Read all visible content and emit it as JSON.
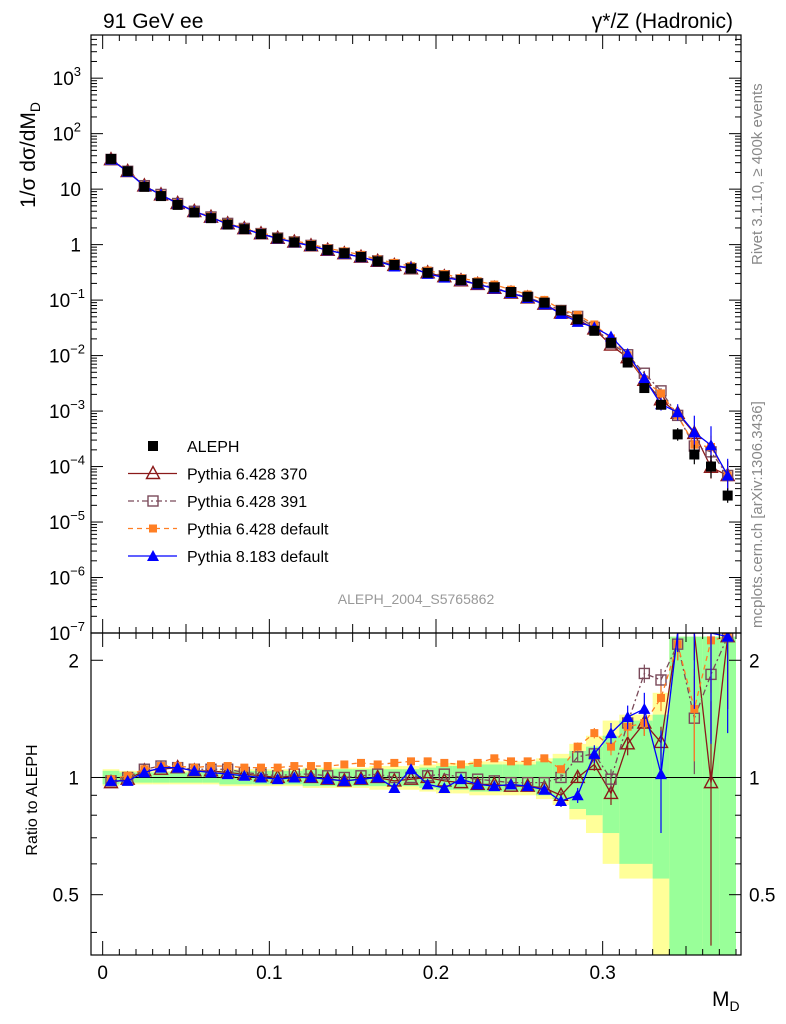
{
  "header": {
    "left_label": "91 GeV ee",
    "right_label": "γ*/Z (Hadronic)"
  },
  "side": {
    "rivet": "Rivet 3.1.10, ≥ 400k events",
    "mcplots": "mcplots.cern.ch [arXiv:1306.3436]"
  },
  "analysis_tag": "ALEPH_2004_S5765862",
  "colors": {
    "data": "#000000",
    "p370": "#8b1a1a",
    "p391": "#7a4a5a",
    "p6def": "#ff7f24",
    "p8": "#0000ff",
    "band_yellow": "#ffff99",
    "band_green": "#99ff99"
  },
  "chart_data": [
    {
      "type": "scatter",
      "panel": "main",
      "ylabel_main": "1/σ  dσ/dM",
      "ylabel_sub": "D",
      "yscale": "log",
      "ylim": [
        1e-07,
        6000
      ],
      "xlim": [
        -0.007,
        0.383
      ],
      "y_ticks": [
        {
          "v": 1000.0,
          "label": "10",
          "sup": "3"
        },
        {
          "v": 100.0,
          "label": "10",
          "sup": "2"
        },
        {
          "v": 10,
          "label": "10",
          "sup": ""
        },
        {
          "v": 1,
          "label": "1",
          "sup": ""
        },
        {
          "v": 0.1,
          "label": "10",
          "sup": "−1"
        },
        {
          "v": 0.01,
          "label": "10",
          "sup": "−2"
        },
        {
          "v": 0.001,
          "label": "10",
          "sup": "−3"
        },
        {
          "v": 0.0001,
          "label": "10",
          "sup": "−4"
        },
        {
          "v": 1e-05,
          "label": "10",
          "sup": "−5"
        },
        {
          "v": 1e-06,
          "label": "10",
          "sup": "−6"
        },
        {
          "v": 1e-07,
          "label": "10",
          "sup": "−7"
        }
      ],
      "x": [
        0.005,
        0.015,
        0.025,
        0.035,
        0.045,
        0.055,
        0.065,
        0.075,
        0.085,
        0.095,
        0.105,
        0.115,
        0.125,
        0.135,
        0.145,
        0.155,
        0.165,
        0.175,
        0.185,
        0.195,
        0.205,
        0.215,
        0.225,
        0.235,
        0.245,
        0.255,
        0.265,
        0.275,
        0.285,
        0.295,
        0.305,
        0.315,
        0.325,
        0.335,
        0.345,
        0.355,
        0.365,
        0.375
      ],
      "data": {
        "name": "ALEPH",
        "y": [
          35,
          21,
          11,
          7.5,
          5.2,
          3.8,
          3.0,
          2.3,
          1.9,
          1.55,
          1.3,
          1.1,
          0.95,
          0.8,
          0.7,
          0.6,
          0.5,
          0.43,
          0.37,
          0.31,
          0.27,
          0.23,
          0.2,
          0.17,
          0.14,
          0.115,
          0.09,
          0.065,
          0.045,
          0.028,
          0.017,
          0.0075,
          0.0026,
          0.0013,
          0.00038,
          0.000165,
          0.0001,
          3e-05
        ],
        "err_factor": [
          1.03,
          1.03,
          1.03,
          1.03,
          1.03,
          1.03,
          1.03,
          1.03,
          1.03,
          1.03,
          1.03,
          1.03,
          1.03,
          1.03,
          1.03,
          1.03,
          1.03,
          1.03,
          1.03,
          1.03,
          1.03,
          1.03,
          1.03,
          1.03,
          1.03,
          1.03,
          1.03,
          1.04,
          1.05,
          1.06,
          1.08,
          1.1,
          1.15,
          1.2,
          1.3,
          1.5,
          1.6,
          1.35
        ]
      },
      "ratio_err_lo": [
        0.96,
        0.97,
        0.97,
        0.97,
        0.97,
        0.97,
        0.97,
        0.96,
        0.96,
        0.96,
        0.96,
        0.96,
        0.95,
        0.95,
        0.95,
        0.95,
        0.95,
        0.95,
        0.95,
        0.94,
        0.93,
        0.93,
        0.92,
        0.92,
        0.92,
        0.92,
        0.9,
        0.88,
        0.83,
        0.8,
        0.72,
        0.6,
        0.6,
        0.55,
        0.35,
        0.35,
        0.35,
        0.35
      ],
      "ratio_err_hi": [
        1.04,
        1.03,
        1.03,
        1.03,
        1.03,
        1.03,
        1.03,
        1.04,
        1.04,
        1.04,
        1.04,
        1.04,
        1.05,
        1.05,
        1.05,
        1.05,
        1.05,
        1.05,
        1.05,
        1.06,
        1.07,
        1.07,
        1.08,
        1.08,
        1.08,
        1.08,
        1.1,
        1.12,
        1.17,
        1.2,
        1.28,
        1.4,
        1.4,
        1.45,
        2.3,
        2.3,
        2.3,
        2.3
      ],
      "ratio_err_lo_total": [
        0.95,
        0.96,
        0.96,
        0.96,
        0.96,
        0.96,
        0.96,
        0.95,
        0.95,
        0.95,
        0.95,
        0.95,
        0.94,
        0.94,
        0.94,
        0.94,
        0.93,
        0.93,
        0.93,
        0.92,
        0.91,
        0.91,
        0.9,
        0.9,
        0.9,
        0.9,
        0.88,
        0.85,
        0.78,
        0.72,
        0.6,
        0.55,
        0.55,
        0.35,
        0.35,
        0.35,
        0.35,
        0.35
      ],
      "ratio_err_hi_total": [
        1.05,
        1.04,
        1.04,
        1.04,
        1.04,
        1.04,
        1.04,
        1.05,
        1.05,
        1.05,
        1.05,
        1.05,
        1.06,
        1.06,
        1.06,
        1.06,
        1.07,
        1.07,
        1.07,
        1.08,
        1.09,
        1.09,
        1.1,
        1.1,
        1.1,
        1.1,
        1.12,
        1.15,
        1.22,
        1.28,
        1.4,
        1.45,
        1.45,
        1.65,
        2.3,
        2.3,
        2.3,
        2.3
      ],
      "series": [
        {
          "name": "Pythia 6.428 370",
          "key": "p370",
          "ratio": [
            0.97,
            0.99,
            1.04,
            1.05,
            1.06,
            1.04,
            1.04,
            1.03,
            1.02,
            1.01,
            1.0,
            1.01,
            1.0,
            0.99,
            0.98,
            0.99,
            1.0,
            0.98,
            0.99,
            1.0,
            0.98,
            0.97,
            0.96,
            0.96,
            0.95,
            0.95,
            0.94,
            0.9,
            1.0,
            1.08,
            0.91,
            1.22,
            1.38,
            1.23,
            2.4,
            2.4,
            0.97,
            2.3
          ],
          "err": [
            0.01,
            0.01,
            0.01,
            0.01,
            0.01,
            0.01,
            0.01,
            0.01,
            0.01,
            0.01,
            0.01,
            0.01,
            0.01,
            0.01,
            0.01,
            0.01,
            0.01,
            0.01,
            0.01,
            0.01,
            0.01,
            0.01,
            0.01,
            0.01,
            0.01,
            0.01,
            0.02,
            0.02,
            0.03,
            0.04,
            0.06,
            0.08,
            0.1,
            0.12,
            0.2,
            0.4,
            0.6,
            0.8
          ]
        },
        {
          "name": "Pythia 6.428 391",
          "key": "p391",
          "ratio": [
            0.98,
            1.0,
            1.05,
            1.07,
            1.06,
            1.05,
            1.05,
            1.05,
            1.03,
            1.02,
            1.01,
            1.02,
            1.02,
            1.01,
            1.0,
            1.01,
            1.02,
            1.0,
            1.0,
            1.01,
            1.02,
            1.0,
            0.99,
            0.98,
            0.97,
            0.97,
            0.97,
            1.0,
            1.13,
            1.15,
            0.99,
            1.38,
            1.85,
            1.78,
            2.2,
            1.42,
            1.84,
            2.3
          ],
          "err": [
            0.01,
            0.01,
            0.01,
            0.01,
            0.01,
            0.01,
            0.01,
            0.01,
            0.01,
            0.01,
            0.01,
            0.01,
            0.01,
            0.01,
            0.01,
            0.01,
            0.01,
            0.01,
            0.01,
            0.01,
            0.01,
            0.01,
            0.01,
            0.01,
            0.01,
            0.01,
            0.02,
            0.02,
            0.03,
            0.04,
            0.06,
            0.08,
            0.1,
            0.12,
            0.2,
            0.4,
            0.6,
            0.8
          ]
        },
        {
          "name": "Pythia 6.428 default",
          "key": "p6def",
          "ratio": [
            0.99,
            1.01,
            1.05,
            1.07,
            1.07,
            1.06,
            1.07,
            1.07,
            1.06,
            1.06,
            1.06,
            1.07,
            1.07,
            1.07,
            1.08,
            1.09,
            1.08,
            1.09,
            1.1,
            1.1,
            1.09,
            1.08,
            1.09,
            1.12,
            1.1,
            1.1,
            1.12,
            1.05,
            1.2,
            1.3,
            1.2,
            1.35,
            1.38,
            1.6,
            2.2,
            1.5,
            2.25,
            2.3
          ],
          "err": [
            0.01,
            0.01,
            0.01,
            0.01,
            0.01,
            0.01,
            0.01,
            0.01,
            0.01,
            0.01,
            0.01,
            0.01,
            0.01,
            0.01,
            0.01,
            0.01,
            0.01,
            0.01,
            0.01,
            0.01,
            0.01,
            0.01,
            0.01,
            0.01,
            0.01,
            0.01,
            0.02,
            0.02,
            0.03,
            0.04,
            0.06,
            0.08,
            0.1,
            0.12,
            0.2,
            0.4,
            0.6,
            0.8
          ]
        },
        {
          "name": "Pythia 8.183 default",
          "key": "p8",
          "ratio": [
            0.98,
            0.98,
            1.03,
            1.06,
            1.06,
            1.04,
            1.03,
            1.02,
            1.01,
            1.0,
            0.99,
            1.0,
            1.0,
            0.99,
            0.98,
            0.99,
            1.0,
            0.94,
            1.05,
            0.96,
            0.94,
            0.99,
            0.96,
            0.95,
            0.96,
            0.95,
            0.93,
            0.87,
            0.9,
            1.15,
            1.3,
            1.43,
            1.5,
            1.02,
            2.5,
            2.5,
            2.42,
            2.3
          ],
          "err": [
            0.01,
            0.01,
            0.01,
            0.01,
            0.01,
            0.01,
            0.01,
            0.01,
            0.01,
            0.01,
            0.01,
            0.01,
            0.01,
            0.01,
            0.01,
            0.01,
            0.01,
            0.01,
            0.01,
            0.01,
            0.01,
            0.01,
            0.01,
            0.01,
            0.01,
            0.01,
            0.02,
            0.03,
            0.04,
            0.06,
            0.08,
            0.1,
            0.15,
            0.3,
            0.4,
            1.0,
            1.2,
            1.0
          ]
        }
      ]
    },
    {
      "type": "line",
      "panel": "ratio",
      "ylabel": "Ratio to ALEPH",
      "ylim": [
        0.35,
        2.35
      ],
      "y_ticks": [
        0.5,
        1,
        2
      ],
      "y_tick_labels": [
        "0.5",
        "1",
        "2"
      ],
      "x_ticks": [
        0,
        0.1,
        0.2,
        0.3
      ],
      "x_tick_labels": [
        "0",
        "0.1",
        "0.2",
        "0.3"
      ],
      "xlabel": "M",
      "xlabel_sub": "D"
    }
  ]
}
